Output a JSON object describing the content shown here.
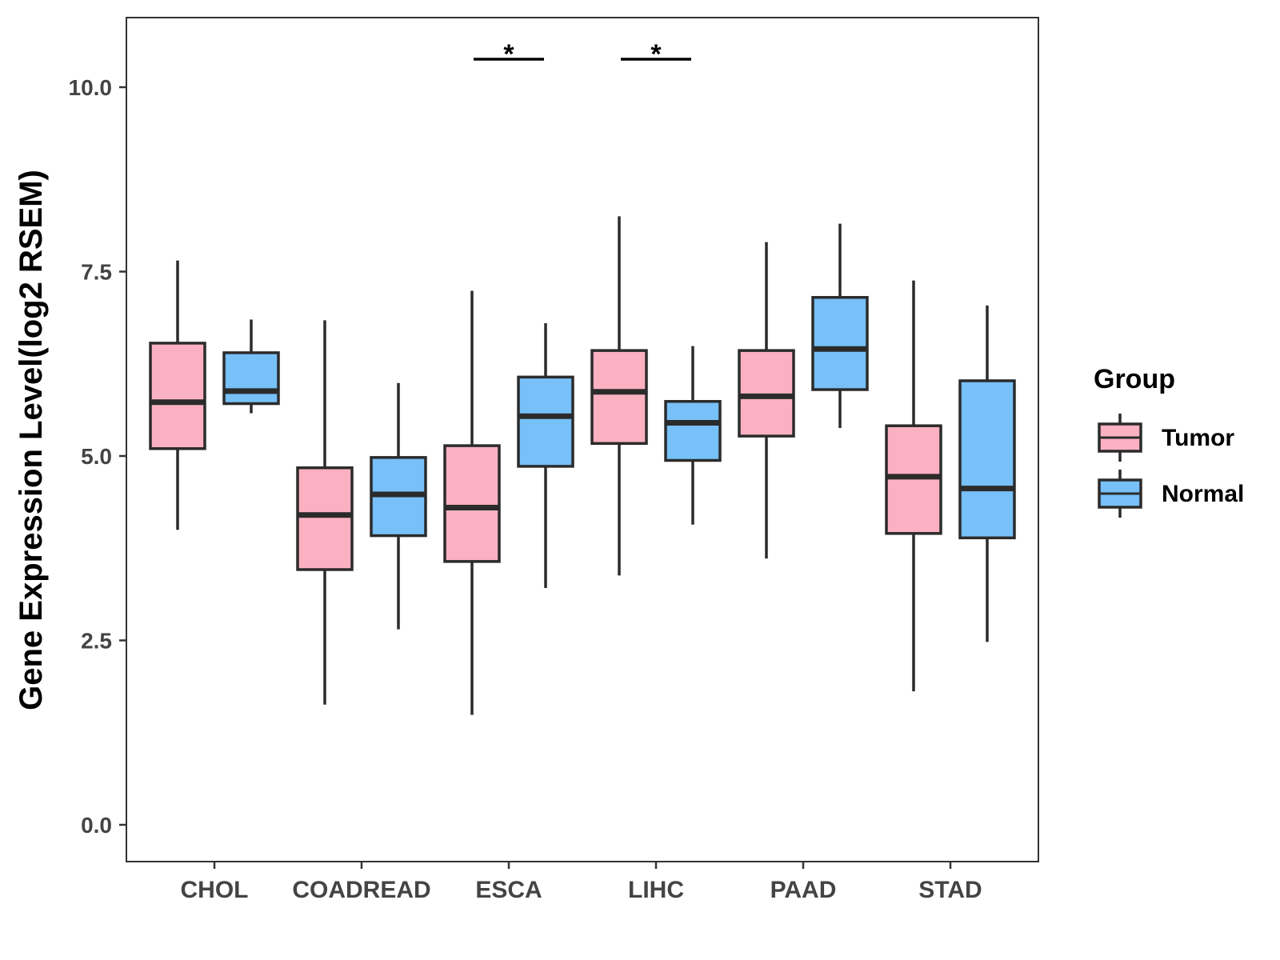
{
  "chart_data": {
    "type": "boxplot",
    "ylabel": "Gene Expression Level(log2 RSEM)",
    "xlabel": "",
    "ylim": [
      -0.5,
      10.95
    ],
    "yticks": [
      0.0,
      2.5,
      5.0,
      7.5,
      10.0
    ],
    "ytick_labels": [
      "0.0",
      "2.5",
      "5.0",
      "7.5",
      "10.0"
    ],
    "categories": [
      "CHOL",
      "COADREAD",
      "ESCA",
      "LIHC",
      "PAAD",
      "STAD"
    ],
    "legend": {
      "title": "Group",
      "position": "right",
      "entries": [
        {
          "name": "Tumor",
          "color": "#fbb1c2"
        },
        {
          "name": "Normal",
          "color": "#77c0f8"
        }
      ]
    },
    "series": [
      {
        "name": "Tumor",
        "color": "#fbb1c2",
        "boxes": [
          {
            "category": "CHOL",
            "min": 4.0,
            "q1": 5.1,
            "median": 5.73,
            "q3": 6.53,
            "max": 7.65
          },
          {
            "category": "COADREAD",
            "min": 1.63,
            "q1": 3.46,
            "median": 4.2,
            "q3": 4.84,
            "max": 6.84
          },
          {
            "category": "ESCA",
            "min": 1.49,
            "q1": 3.57,
            "median": 4.3,
            "q3": 5.14,
            "max": 7.24
          },
          {
            "category": "LIHC",
            "min": 3.38,
            "q1": 5.17,
            "median": 5.87,
            "q3": 6.43,
            "max": 8.25
          },
          {
            "category": "PAAD",
            "min": 3.61,
            "q1": 5.27,
            "median": 5.81,
            "q3": 6.43,
            "max": 7.9
          },
          {
            "category": "STAD",
            "min": 1.81,
            "q1": 3.95,
            "median": 4.72,
            "q3": 5.41,
            "max": 7.38
          }
        ]
      },
      {
        "name": "Normal",
        "color": "#77c0f8",
        "boxes": [
          {
            "category": "CHOL",
            "min": 5.58,
            "q1": 5.71,
            "median": 5.88,
            "q3": 6.4,
            "max": 6.85
          },
          {
            "category": "COADREAD",
            "min": 2.65,
            "q1": 3.92,
            "median": 4.48,
            "q3": 4.98,
            "max": 5.99
          },
          {
            "category": "ESCA",
            "min": 3.21,
            "q1": 4.86,
            "median": 5.54,
            "q3": 6.07,
            "max": 6.8
          },
          {
            "category": "LIHC",
            "min": 4.07,
            "q1": 4.94,
            "median": 5.45,
            "q3": 5.74,
            "max": 6.49
          },
          {
            "category": "PAAD",
            "min": 5.38,
            "q1": 5.9,
            "median": 6.45,
            "q3": 7.15,
            "max": 8.15
          },
          {
            "category": "STAD",
            "min": 2.48,
            "q1": 3.89,
            "median": 4.56,
            "q3": 6.02,
            "max": 7.04
          }
        ]
      }
    ],
    "significance": [
      {
        "category": "ESCA",
        "label": "*",
        "y": 10.38
      },
      {
        "category": "LIHC",
        "label": "*",
        "y": 10.38
      }
    ]
  }
}
